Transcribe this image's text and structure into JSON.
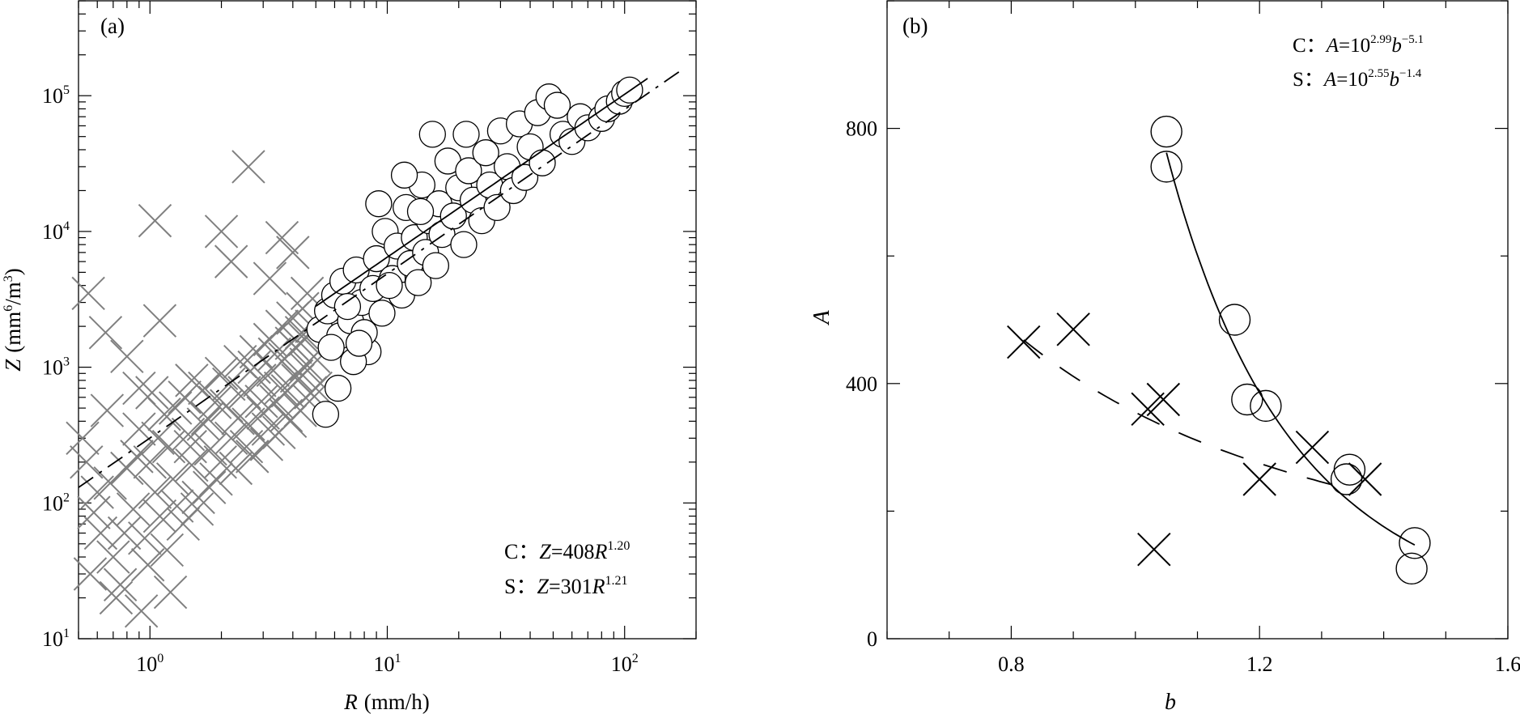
{
  "chart_data": [
    {
      "type": "scatter",
      "panel_label": "(a)",
      "xlabel_var": "R",
      "xlabel_unit": "(mm/h)",
      "ylabel_var": "Z",
      "ylabel_unit_pre": "(mm",
      "ylabel_unit_exp": "6",
      "ylabel_unit_mid": "/m",
      "ylabel_unit_exp2": "3",
      "ylabel_unit_post": ")",
      "x_scale": "log",
      "y_scale": "log",
      "xlim": [
        0.5,
        200
      ],
      "ylim": [
        10,
        500000
      ],
      "x_ticks": [
        {
          "value": 1,
          "base": "10",
          "exp": "0"
        },
        {
          "value": 10,
          "base": "10",
          "exp": "1"
        },
        {
          "value": 100,
          "base": "10",
          "exp": "2"
        }
      ],
      "y_ticks": [
        {
          "value": 10,
          "base": "10",
          "exp": "1"
        },
        {
          "value": 100,
          "base": "10",
          "exp": "2"
        },
        {
          "value": 1000,
          "base": "10",
          "exp": "3"
        },
        {
          "value": 10000,
          "base": "10",
          "exp": "4"
        },
        {
          "value": 100000,
          "base": "10",
          "exp": "5"
        }
      ],
      "annotations": [
        {
          "prefix": "C：",
          "lhs": "Z",
          "eq": "=408",
          "var": "R",
          "exp": "1.20"
        },
        {
          "prefix": "S：",
          "lhs": "Z",
          "eq": "=301",
          "var": "R",
          "exp": "1.21"
        }
      ],
      "series": [
        {
          "name": "C",
          "marker": "circle",
          "color": "#000000",
          "fit": {
            "a": 408,
            "b": 1.2,
            "x_range": [
              5,
              125
            ],
            "style": "solid"
          },
          "points": [
            [
              5.2,
              1900
            ],
            [
              5.6,
              2600
            ],
            [
              6.0,
              3400
            ],
            [
              6.3,
              1700
            ],
            [
              6.5,
              4300
            ],
            [
              7.0,
              2200
            ],
            [
              7.4,
              5200
            ],
            [
              7.8,
              3000
            ],
            [
              8.3,
              1300
            ],
            [
              8.7,
              3800
            ],
            [
              9.0,
              6300
            ],
            [
              9.5,
              2500
            ],
            [
              9.8,
              10000
            ],
            [
              10.5,
              4500
            ],
            [
              11,
              7800
            ],
            [
              11.5,
              3400
            ],
            [
              12,
              15000
            ],
            [
              12.5,
              5800
            ],
            [
              13,
              9000
            ],
            [
              13.5,
              4200
            ],
            [
              14,
              22000
            ],
            [
              14.5,
              7000
            ],
            [
              15,
              12000
            ],
            [
              15.5,
              52000
            ],
            [
              16,
              5600
            ],
            [
              16.5,
              16000
            ],
            [
              17,
              9500
            ],
            [
              18,
              33000
            ],
            [
              19,
              13000
            ],
            [
              20,
              21000
            ],
            [
              21,
              8000
            ],
            [
              22,
              28000
            ],
            [
              23,
              17000
            ],
            [
              25,
              12000
            ],
            [
              26,
              38000
            ],
            [
              27,
              22000
            ],
            [
              29,
              15000
            ],
            [
              30,
              55000
            ],
            [
              32,
              30000
            ],
            [
              34,
              20000
            ],
            [
              36,
              62000
            ],
            [
              38,
              25000
            ],
            [
              40,
              42000
            ],
            [
              43,
              75000
            ],
            [
              45,
              32000
            ],
            [
              48,
              98000
            ],
            [
              52,
              85000
            ],
            [
              55,
              52000
            ],
            [
              60,
              46000
            ],
            [
              65,
              70000
            ],
            [
              70,
              58000
            ],
            [
              80,
              68000
            ],
            [
              85,
              80000
            ],
            [
              95,
              91000
            ],
            [
              100,
              104000
            ],
            [
              105,
              110000
            ],
            [
              8.0,
              1800
            ],
            [
              7.2,
              1100
            ],
            [
              6.8,
              2800
            ],
            [
              5.8,
              1400
            ],
            [
              11.8,
              26000
            ],
            [
              9.2,
              16000
            ],
            [
              13.8,
              14000
            ],
            [
              21.5,
              52000
            ],
            [
              10.2,
              4000
            ],
            [
              6.2,
              700
            ],
            [
              5.5,
              450
            ],
            [
              7.6,
              1500
            ]
          ]
        },
        {
          "name": "S",
          "marker": "cross",
          "color": "#808080",
          "fit": {
            "a": 301,
            "b": 1.21,
            "x_range": [
              0.5,
              170
            ],
            "style": "dash-dot"
          },
          "points": [
            [
              0.55,
              3500
            ],
            [
              0.65,
              1800
            ],
            [
              0.8,
              1200
            ],
            [
              0.9,
              700
            ],
            [
              1.05,
              12000
            ],
            [
              1.1,
              2200
            ],
            [
              1.5,
              800
            ],
            [
              2.0,
              10000
            ],
            [
              2.2,
              6000
            ],
            [
              2.6,
              30000
            ],
            [
              3.2,
              4500
            ],
            [
              3.6,
              9000
            ],
            [
              4.0,
              7000
            ],
            [
              4.6,
              3500
            ],
            [
              0.52,
              300
            ],
            [
              0.6,
              120
            ],
            [
              0.62,
              60
            ],
            [
              0.7,
              40
            ],
            [
              0.75,
              25
            ],
            [
              0.8,
              180
            ],
            [
              0.85,
              90
            ],
            [
              0.9,
              350
            ],
            [
              0.95,
              55
            ],
            [
              1.0,
              200
            ],
            [
              1.05,
              120
            ],
            [
              1.1,
              80
            ],
            [
              1.15,
              450
            ],
            [
              1.2,
              260
            ],
            [
              1.25,
              150
            ],
            [
              1.3,
              95
            ],
            [
              1.4,
              600
            ],
            [
              1.45,
              320
            ],
            [
              1.5,
              190
            ],
            [
              1.6,
              110
            ],
            [
              1.7,
              700
            ],
            [
              1.75,
              420
            ],
            [
              1.8,
              250
            ],
            [
              1.9,
              150
            ],
            [
              2.0,
              900
            ],
            [
              2.1,
              520
            ],
            [
              2.2,
              300
            ],
            [
              2.3,
              180
            ],
            [
              2.4,
              1100
            ],
            [
              2.5,
              650
            ],
            [
              2.6,
              380
            ],
            [
              2.7,
              220
            ],
            [
              2.8,
              1300
            ],
            [
              2.9,
              800
            ],
            [
              3.0,
              460
            ],
            [
              3.1,
              270
            ],
            [
              3.2,
              1600
            ],
            [
              3.3,
              950
            ],
            [
              3.4,
              560
            ],
            [
              3.5,
              330
            ],
            [
              3.6,
              2000
            ],
            [
              3.7,
              1150
            ],
            [
              3.8,
              670
            ],
            [
              3.9,
              400
            ],
            [
              4.0,
              2300
            ],
            [
              4.1,
              1400
            ],
            [
              4.2,
              800
            ],
            [
              4.3,
              480
            ],
            [
              4.4,
              2700
            ],
            [
              4.5,
              1600
            ],
            [
              4.6,
              950
            ],
            [
              4.7,
              560
            ],
            [
              4.8,
              2000
            ],
            [
              4.9,
              1200
            ],
            [
              5.0,
              700
            ],
            [
              0.58,
              85
            ],
            [
              0.68,
              140
            ],
            [
              0.78,
              60
            ],
            [
              0.88,
              220
            ],
            [
              0.98,
              35
            ],
            [
              1.08,
              300
            ],
            [
              1.18,
              45
            ],
            [
              1.28,
              500
            ],
            [
              1.38,
              70
            ],
            [
              1.48,
              260
            ],
            [
              1.58,
              90
            ],
            [
              1.68,
              380
            ],
            [
              1.78,
              130
            ],
            [
              1.88,
              550
            ],
            [
              1.98,
              200
            ],
            [
              2.15,
              750
            ],
            [
              2.35,
              420
            ],
            [
              2.55,
              260
            ],
            [
              2.75,
              1000
            ],
            [
              2.95,
              560
            ],
            [
              3.15,
              350
            ],
            [
              3.35,
              1250
            ],
            [
              3.55,
              700
            ],
            [
              3.75,
              440
            ],
            [
              3.95,
              1500
            ],
            [
              4.15,
              860
            ],
            [
              4.35,
              1800
            ],
            [
              4.55,
              1050
            ],
            [
              4.75,
              650
            ],
            [
              0.54,
              200
            ],
            [
              0.56,
              30
            ],
            [
              0.66,
              480
            ],
            [
              0.72,
              20
            ],
            [
              0.92,
              16
            ],
            [
              1.02,
              650
            ],
            [
              1.22,
              22
            ]
          ]
        }
      ]
    },
    {
      "type": "scatter",
      "panel_label": "(b)",
      "xlabel": "b",
      "ylabel": "A",
      "x_scale": "linear",
      "y_scale": "linear",
      "xlim": [
        0.6,
        1.6
      ],
      "ylim": [
        0,
        1000
      ],
      "x_ticks": [
        {
          "value": 0.8,
          "label": "0.8"
        },
        {
          "value": 1.2,
          "label": "1.2"
        },
        {
          "value": 1.6,
          "label": "1.6"
        }
      ],
      "y_ticks": [
        {
          "value": 0,
          "label": "0"
        },
        {
          "value": 400,
          "label": "400"
        },
        {
          "value": 800,
          "label": "800"
        }
      ],
      "annotations": [
        {
          "prefix": "C：",
          "lhs": "A",
          "eq": "=10",
          "exp": "2.99",
          "var": "b",
          "exp2": "−5.1"
        },
        {
          "prefix": "S：",
          "lhs": "A",
          "eq": "=10",
          "exp": "2.55",
          "var": "b",
          "exp2": "−1.4"
        }
      ],
      "series": [
        {
          "name": "C",
          "marker": "circle",
          "color": "#000000",
          "fit": {
            "log10a": 2.99,
            "b": -5.1,
            "x_range": [
              1.05,
              1.45
            ],
            "style": "solid"
          },
          "points": [
            [
              1.05,
              795
            ],
            [
              1.05,
              740
            ],
            [
              1.16,
              500
            ],
            [
              1.18,
              375
            ],
            [
              1.21,
              365
            ],
            [
              1.34,
              250
            ],
            [
              1.345,
              265
            ],
            [
              1.45,
              150
            ],
            [
              1.445,
              110
            ]
          ]
        },
        {
          "name": "S",
          "marker": "cross",
          "color": "#000000",
          "fit": {
            "log10a": 2.55,
            "b": -1.4,
            "x_range": [
              0.82,
              1.34
            ],
            "style": "dashed"
          },
          "points": [
            [
              0.82,
              465
            ],
            [
              0.9,
              485
            ],
            [
              1.02,
              360
            ],
            [
              1.045,
              375
            ],
            [
              1.2,
              250
            ],
            [
              1.285,
              300
            ],
            [
              1.37,
              250
            ],
            [
              1.03,
              140
            ]
          ]
        }
      ]
    }
  ]
}
